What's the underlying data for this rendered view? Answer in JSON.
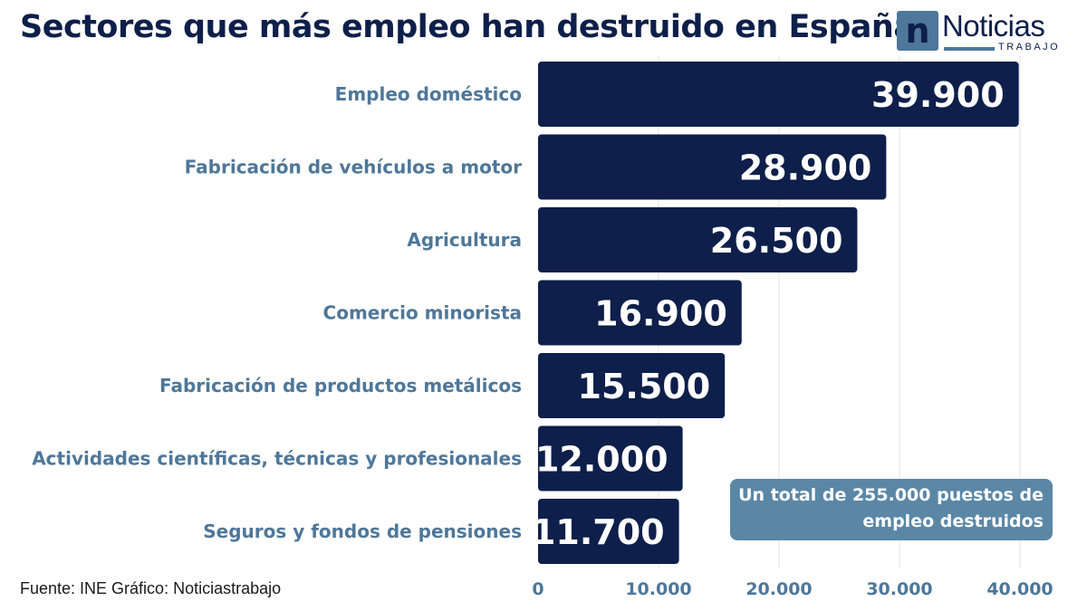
{
  "title": "Sectores que más empleo han destruido en España",
  "logo": {
    "main": "Noticias",
    "sub": "TRABAJO",
    "mark": "n"
  },
  "source": "Fuente: INE Gráfico: Noticiastrabajo",
  "note": {
    "line1": "Un total de 255.000 puestos de",
    "line2": "empleo destruidos"
  },
  "colors": {
    "bar": "#0d1f4a",
    "category_label": "#4e7799",
    "tick_label": "#4e7799",
    "grid": "#e3e3e3",
    "note_background": "#5b87a6"
  },
  "chart_data": {
    "type": "bar",
    "orientation": "horizontal",
    "categories": [
      "Empleo doméstico",
      "Fabricación de vehículos a motor",
      "Agricultura",
      "Comercio minorista",
      "Fabricación de productos metálicos",
      "Actividades científicas, técnicas y profesionales",
      "Seguros y fondos de pensiones"
    ],
    "values": [
      39900,
      28900,
      26500,
      16900,
      15500,
      12000,
      11700
    ],
    "value_labels": [
      "39.900",
      "28.900",
      "26.500",
      "16.900",
      "15.500",
      "12.000",
      "11.700"
    ],
    "xticks": [
      0,
      10000,
      20000,
      30000,
      40000
    ],
    "xtick_labels": [
      "0",
      "10.000",
      "20.000",
      "30.000",
      "40.000"
    ],
    "xlim": [
      0,
      40000
    ],
    "grid": true
  }
}
